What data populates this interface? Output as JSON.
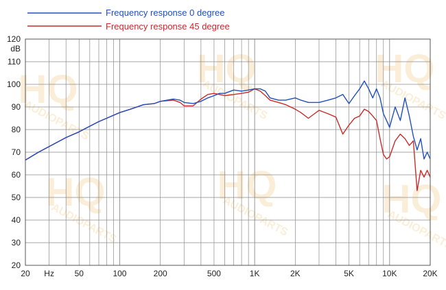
{
  "chart_data": {
    "type": "line",
    "title": "",
    "xlabel": "",
    "ylabel": "",
    "y_unit_label": "dB",
    "x_scale": "log",
    "xlim": [
      20,
      20000
    ],
    "ylim": [
      20,
      120
    ],
    "y_ticks": [
      20,
      30,
      40,
      50,
      60,
      70,
      80,
      90,
      100,
      110,
      120
    ],
    "x_tick_labels": [
      {
        "value": 20,
        "label": "20"
      },
      {
        "value": 30,
        "label": "Hz"
      },
      {
        "value": 50,
        "label": "50"
      },
      {
        "value": 100,
        "label": "100"
      },
      {
        "value": 200,
        "label": "200"
      },
      {
        "value": 500,
        "label": "500"
      },
      {
        "value": 1000,
        "label": "1K"
      },
      {
        "value": 2000,
        "label": "2K"
      },
      {
        "value": 5000,
        "label": "5K"
      },
      {
        "value": 10000,
        "label": "10K"
      },
      {
        "value": 20000,
        "label": "20K"
      }
    ],
    "grid": true,
    "legend_position": "top-left",
    "watermark_text": [
      "HQ",
      "AUDIOPARTS"
    ],
    "series": [
      {
        "name": "Frequency response 0 degree",
        "color": "#1f4fbf",
        "x": [
          20,
          25,
          30,
          40,
          50,
          60,
          70,
          80,
          100,
          120,
          150,
          180,
          200,
          250,
          280,
          300,
          350,
          400,
          450,
          500,
          550,
          600,
          700,
          800,
          900,
          1000,
          1100,
          1200,
          1300,
          1500,
          1700,
          2000,
          2200,
          2500,
          3000,
          3500,
          4000,
          4500,
          5000,
          5500,
          6000,
          6500,
          7000,
          7500,
          8000,
          8500,
          9000,
          9500,
          10000,
          11000,
          12000,
          13000,
          14000,
          15000,
          16000,
          17000,
          18000,
          19000,
          20000
        ],
        "y": [
          66.5,
          70,
          72.5,
          76.5,
          79,
          81.5,
          83.5,
          85,
          87.5,
          89,
          91,
          91.5,
          92.5,
          93.5,
          93,
          92,
          91.5,
          92.5,
          94,
          95,
          96,
          96,
          97.5,
          97,
          97.5,
          98,
          98,
          97,
          94,
          93,
          93,
          94,
          93,
          92,
          92,
          93,
          94,
          95.5,
          91.5,
          95,
          98,
          101.5,
          98,
          94,
          98,
          94,
          87,
          84,
          81,
          90,
          84,
          94,
          86,
          77,
          71,
          76,
          67,
          70,
          67
        ]
      },
      {
        "name": "Frequency response 45 degree",
        "color": "#cc2a2a",
        "x": [
          20,
          25,
          30,
          40,
          50,
          60,
          70,
          80,
          100,
          120,
          150,
          180,
          200,
          250,
          280,
          300,
          350,
          400,
          450,
          500,
          550,
          600,
          700,
          800,
          900,
          1000,
          1100,
          1200,
          1300,
          1500,
          1700,
          2000,
          2200,
          2500,
          3000,
          3500,
          4000,
          4500,
          5000,
          5500,
          6000,
          6500,
          7000,
          7500,
          8000,
          8500,
          9000,
          9500,
          10000,
          11000,
          12000,
          13000,
          14000,
          15000,
          16000,
          17000,
          18000,
          19000,
          20000
        ],
        "y": [
          66.5,
          70,
          72.5,
          76.5,
          79,
          81.5,
          83.5,
          85,
          87.5,
          89,
          91,
          91.5,
          92.5,
          93,
          92,
          90.5,
          90.5,
          93.5,
          95.5,
          96,
          95.5,
          95,
          95.5,
          96,
          96.5,
          98,
          97,
          95,
          93,
          92,
          91,
          89,
          87.5,
          85,
          88.5,
          87,
          85.5,
          78,
          82,
          85,
          86,
          89,
          88,
          86,
          84,
          76,
          69,
          67,
          68,
          75,
          78,
          76,
          73,
          75,
          53,
          62,
          59,
          62,
          59
        ]
      }
    ]
  }
}
